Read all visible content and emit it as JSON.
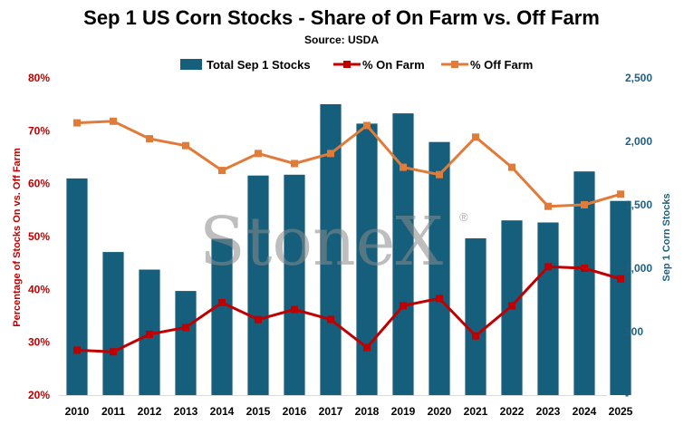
{
  "chart_data": {
    "type": "bar",
    "title": "Sep 1 US Corn Stocks - Share of On Farm vs. Off Farm",
    "subtitle": "Source: USDA",
    "categories": [
      "2010",
      "2011",
      "2012",
      "2013",
      "2014",
      "2015",
      "2016",
      "2017",
      "2018",
      "2019",
      "2020",
      "2021",
      "2022",
      "2023",
      "2024",
      "2025"
    ],
    "series": [
      {
        "name": "Total Sep 1 Stocks",
        "kind": "bar",
        "axis": "right",
        "color": "#155e7c",
        "values": [
          1708,
          1128,
          989,
          821,
          1232,
          1731,
          1737,
          2293,
          2140,
          2221,
          1995,
          1236,
          1377,
          1361,
          1763,
          1531
        ]
      },
      {
        "name": "% On Farm",
        "kind": "line",
        "axis": "left",
        "color": "#c00000",
        "values": [
          28.5,
          28.2,
          31.5,
          32.8,
          37.5,
          34.3,
          36.2,
          34.3,
          29.0,
          36.9,
          38.3,
          31.2,
          36.9,
          44.3,
          44.0,
          42.0
        ]
      },
      {
        "name": "% Off Farm",
        "kind": "line",
        "axis": "left",
        "color": "#e07b39",
        "values": [
          71.5,
          71.8,
          68.5,
          67.2,
          62.5,
          65.7,
          63.8,
          65.7,
          71.0,
          63.1,
          61.7,
          68.8,
          63.1,
          55.7,
          56.0,
          58.0
        ]
      }
    ],
    "ylabel": "Percentage of Stocks On vs. Off Farm",
    "ylabel_right": "Sep 1 Corn Stocks",
    "xlabel": "",
    "ylim": [
      20,
      80
    ],
    "ylim_right": [
      0,
      2500
    ],
    "yticks": [
      "20%",
      "30%",
      "40%",
      "50%",
      "60%",
      "70%",
      "80%"
    ],
    "yticks_right": [
      "-",
      "500",
      "1,000",
      "1,500",
      "2,000",
      "2,500"
    ],
    "legend_position": "top-center",
    "grid": false
  },
  "watermark": {
    "text": "StoneX",
    "mark": "®"
  }
}
